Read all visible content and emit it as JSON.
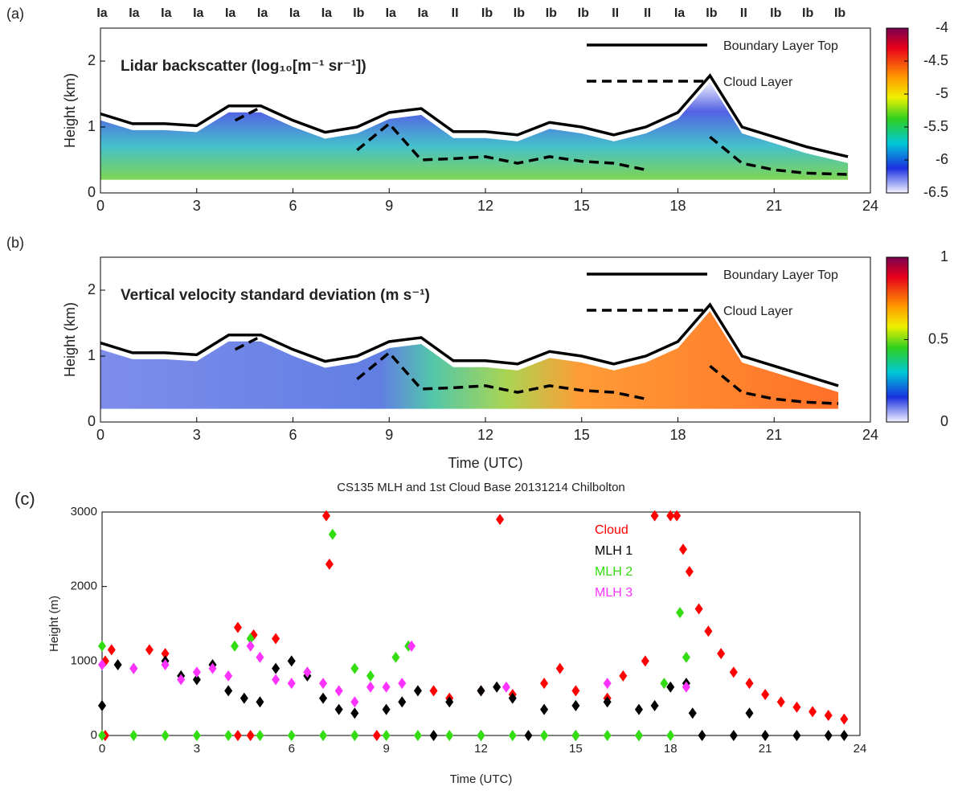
{
  "chart_data": [
    {
      "type": "line",
      "panel_label": "(a)",
      "title": "Lidar backscatter (log₁₀[m⁻¹ sr⁻¹])",
      "ylabel": "Height (km)",
      "top_labels": [
        "Ia",
        "Ia",
        "Ia",
        "Ia",
        "Ia",
        "Ia",
        "Ia",
        "Ia",
        "Ib",
        "Ia",
        "Ia",
        "II",
        "Ib",
        "Ib",
        "Ib",
        "Ib",
        "II",
        "II",
        "Ia",
        "Ib",
        "II",
        "Ib",
        "Ib",
        "Ib"
      ],
      "xlim": [
        0,
        24
      ],
      "xticks": [
        0,
        3,
        6,
        9,
        12,
        15,
        18,
        21,
        24
      ],
      "ylim": [
        0,
        2.5
      ],
      "yticks": [
        0,
        1,
        2
      ],
      "colorbar": {
        "lim": [
          -6.5,
          -4
        ],
        "ticks": [
          -4,
          -4.5,
          -5,
          -5.5,
          -6,
          -6.5
        ]
      },
      "series": [
        {
          "name": "Boundary Layer Top",
          "color": "#000000",
          "style": "solid",
          "x": [
            0,
            1,
            2,
            3,
            4,
            5,
            6,
            7,
            8,
            9,
            10,
            11,
            12,
            13,
            14,
            15,
            16,
            17,
            18,
            19,
            20,
            21,
            22,
            23.3
          ],
          "values": [
            1.2,
            1.05,
            1.05,
            1.02,
            1.32,
            1.32,
            1.1,
            0.92,
            1.0,
            1.22,
            1.28,
            0.93,
            0.93,
            0.88,
            1.07,
            1.0,
            0.88,
            1.0,
            1.22,
            1.78,
            1.0,
            0.85,
            0.7,
            0.55
          ]
        },
        {
          "name": "Cloud Layer",
          "color": "#000000",
          "style": "dashed",
          "x": [
            4.2,
            5,
            6,
            8,
            9,
            10,
            11,
            12,
            13,
            14,
            15,
            16,
            17,
            18,
            19,
            20,
            21,
            22,
            23.3
          ],
          "values": [
            1.1,
            1.3,
            null,
            0.65,
            1.05,
            0.5,
            0.52,
            0.55,
            0.45,
            0.55,
            0.48,
            0.45,
            0.35,
            null,
            0.85,
            0.45,
            0.35,
            0.3,
            0.28
          ]
        }
      ]
    },
    {
      "type": "line",
      "panel_label": "(b)",
      "title": "Vertical velocity standard deviation (m s⁻¹)",
      "ylabel": "Height (km)",
      "xlabel": "Time (UTC)",
      "xlim": [
        0,
        24
      ],
      "xticks": [
        0,
        3,
        6,
        9,
        12,
        15,
        18,
        21,
        24
      ],
      "ylim": [
        0,
        2.5
      ],
      "yticks": [
        0,
        1,
        2
      ],
      "colorbar": {
        "lim": [
          0,
          1
        ],
        "ticks": [
          0,
          0.5,
          1
        ]
      },
      "series": [
        {
          "name": "Boundary Layer Top",
          "color": "#000000",
          "style": "solid",
          "x": [
            0,
            1,
            2,
            3,
            4,
            5,
            6,
            7,
            8,
            9,
            10,
            11,
            12,
            13,
            14,
            15,
            16,
            17,
            18,
            19,
            20,
            21,
            22,
            23
          ],
          "values": [
            1.2,
            1.05,
            1.05,
            1.02,
            1.32,
            1.32,
            1.1,
            0.92,
            1.0,
            1.22,
            1.28,
            0.93,
            0.93,
            0.88,
            1.07,
            1.0,
            0.88,
            1.0,
            1.22,
            1.78,
            1.0,
            0.85,
            0.7,
            0.55
          ]
        },
        {
          "name": "Cloud Layer",
          "color": "#000000",
          "style": "dashed",
          "x": [
            4.2,
            5,
            6,
            8,
            9,
            10,
            11,
            12,
            13,
            14,
            15,
            16,
            17,
            18,
            19,
            20,
            21,
            22,
            23
          ],
          "values": [
            1.1,
            1.3,
            null,
            0.65,
            1.05,
            0.5,
            0.52,
            0.55,
            0.45,
            0.55,
            0.48,
            0.45,
            0.35,
            null,
            0.85,
            0.45,
            0.35,
            0.3,
            0.28
          ]
        }
      ]
    },
    {
      "type": "scatter",
      "panel_label": "(c)",
      "title": "CS135 MLH and 1st Cloud Base 20131214 Chilbolton",
      "xlabel": "Time (UTC)",
      "ylabel": "Height (m)",
      "xlim": [
        0,
        24
      ],
      "xticks": [
        0,
        3,
        6,
        9,
        12,
        15,
        18,
        21,
        24
      ],
      "ylim": [
        0,
        3000
      ],
      "yticks": [
        0,
        1000,
        2000,
        3000
      ],
      "series": [
        {
          "name": "Cloud",
          "color": "#ff0000",
          "x": [
            0.1,
            0.3,
            1.5,
            2,
            4.3,
            4.8,
            5.5,
            7.1,
            7.2,
            10.5,
            11,
            12,
            12.6,
            13,
            14,
            14.5,
            15,
            16,
            16.5,
            17.2,
            17.5,
            18,
            18.2,
            18.4,
            18.6,
            18.9,
            19.2,
            19.6,
            20,
            20.5,
            21,
            21.5,
            22,
            22.5,
            23,
            23.5,
            0.1,
            4.3,
            4.7,
            8.7
          ],
          "values": [
            1000,
            1150,
            1150,
            1100,
            1450,
            1350,
            1300,
            2950,
            2300,
            600,
            500,
            600,
            2900,
            550,
            700,
            900,
            600,
            500,
            800,
            1000,
            2950,
            2950,
            2950,
            2500,
            2200,
            1700,
            1400,
            1100,
            850,
            700,
            550,
            450,
            380,
            320,
            270,
            220,
            0,
            0,
            0,
            0
          ]
        },
        {
          "name": "MLH 1",
          "color": "#000000",
          "x": [
            0,
            0.5,
            1,
            2,
            2.5,
            3,
            3.5,
            4,
            4.5,
            5,
            5.5,
            6,
            6.5,
            7,
            7.5,
            8,
            9,
            9.5,
            10,
            11,
            12,
            12.5,
            13,
            14,
            15,
            16,
            17,
            17.5,
            18,
            18.5,
            18.7,
            20.5,
            10.5,
            12,
            13.5,
            15,
            17,
            19,
            20,
            21,
            22,
            23,
            23.5
          ],
          "values": [
            400,
            950,
            900,
            1000,
            800,
            750,
            950,
            600,
            500,
            450,
            900,
            1000,
            800,
            500,
            350,
            300,
            350,
            450,
            600,
            450,
            600,
            650,
            500,
            350,
            400,
            450,
            350,
            400,
            650,
            700,
            300,
            300,
            0,
            0,
            0,
            0,
            0,
            0,
            0,
            0,
            0,
            0,
            0
          ]
        },
        {
          "name": "MLH 2",
          "color": "#33dd11",
          "x": [
            0,
            4.2,
            4.7,
            7.3,
            8,
            8.5,
            9.3,
            9.7,
            17.8,
            18.3,
            18.5,
            0,
            1,
            2,
            3,
            4,
            5,
            6,
            7,
            8,
            9,
            10,
            11,
            12,
            13,
            14,
            15,
            16,
            17,
            18
          ],
          "values": [
            1200,
            1200,
            1300,
            2700,
            900,
            800,
            1050,
            1200,
            700,
            1650,
            1050,
            0,
            0,
            0,
            0,
            0,
            0,
            0,
            0,
            0,
            0,
            0,
            0,
            0,
            0,
            0,
            0,
            0,
            0,
            0
          ]
        },
        {
          "name": "MLH 3",
          "color": "#ff33ff",
          "x": [
            0,
            1,
            2,
            2.5,
            3,
            3.5,
            4,
            4.7,
            5,
            5.5,
            6,
            6.5,
            7,
            7.5,
            8,
            8.5,
            9,
            9.5,
            9.8,
            12.8,
            16,
            18.5
          ],
          "values": [
            950,
            900,
            950,
            750,
            850,
            900,
            800,
            1200,
            1050,
            750,
            700,
            850,
            700,
            600,
            450,
            650,
            650,
            700,
            1200,
            650,
            700,
            650
          ]
        }
      ]
    }
  ]
}
